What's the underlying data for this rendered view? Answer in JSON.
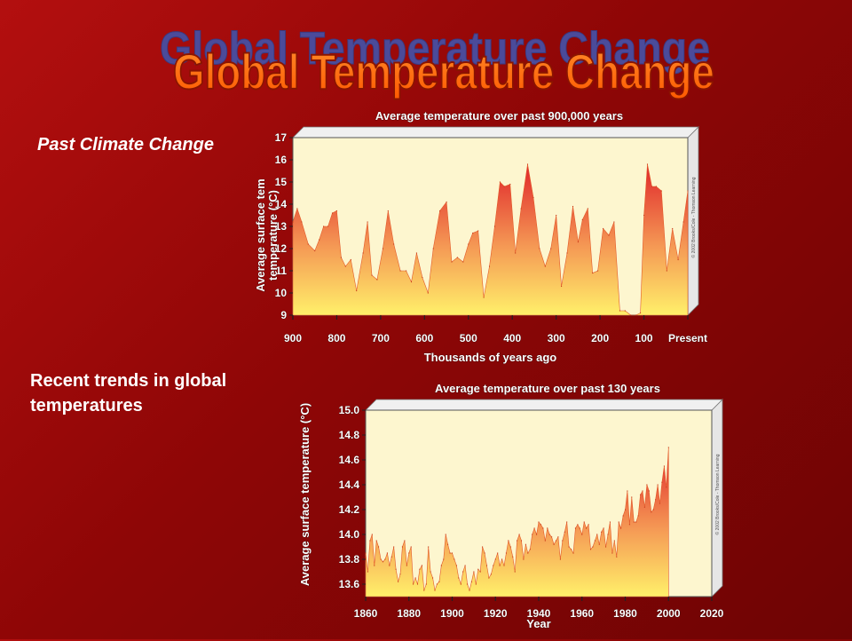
{
  "slide": {
    "title": "Global Temperature Change",
    "label_past": "Past Climate Change",
    "label_recent": "Recent trends in global temperatures"
  },
  "colors": {
    "background": "#8e0606",
    "title_fill": "#ff6a10",
    "title_shadow": "#4b4b9a",
    "plot_bg": "#fdf6cf",
    "area_top": "#e0262b",
    "area_bottom": "#fff06a"
  },
  "chart_data": [
    {
      "type": "area",
      "title": "Average temperature over past 900,000 years",
      "xlabel": "Thousands of years ago",
      "ylabel": "Average surface temperature (°C)",
      "ylabel_lines": [
        "Average surface tem",
        "temperature (°C)"
      ],
      "x_ticks": [
        "900",
        "800",
        "700",
        "600",
        "500",
        "400",
        "300",
        "200",
        "100",
        "Present"
      ],
      "y_ticks": [
        9,
        10,
        11,
        12,
        13,
        14,
        15,
        16,
        17
      ],
      "ylim": [
        9,
        17
      ],
      "xlim": [
        900,
        0
      ],
      "credit": "© 2002 Brooks/Cole - Thomson Learning",
      "x": [
        900,
        890,
        880,
        865,
        850,
        840,
        830,
        820,
        810,
        800,
        790,
        780,
        768,
        755,
        740,
        730,
        720,
        708,
        695,
        683,
        670,
        655,
        642,
        630,
        618,
        605,
        592,
        580,
        565,
        550,
        538,
        525,
        512,
        500,
        490,
        478,
        465,
        452,
        440,
        428,
        418,
        405,
        393,
        380,
        365,
        352,
        338,
        325,
        312,
        300,
        288,
        275,
        262,
        250,
        240,
        228,
        217,
        205,
        193,
        180,
        168,
        155,
        143,
        130,
        118,
        108,
        100,
        92,
        82,
        72,
        60,
        48,
        35,
        22,
        10,
        0
      ],
      "values": [
        13.2,
        13.8,
        13.2,
        12.2,
        11.9,
        12.4,
        13.0,
        13.0,
        13.6,
        13.7,
        11.6,
        11.2,
        11.5,
        10.1,
        11.8,
        13.2,
        10.8,
        10.6,
        12.0,
        13.7,
        12.2,
        11.0,
        11.0,
        10.5,
        11.8,
        10.7,
        10.0,
        12.0,
        13.7,
        14.1,
        11.4,
        11.6,
        11.4,
        12.2,
        12.7,
        12.8,
        9.8,
        11.2,
        13.0,
        15.0,
        14.8,
        14.9,
        11.8,
        13.8,
        15.8,
        14.3,
        12.0,
        11.2,
        12.0,
        13.5,
        10.3,
        11.8,
        13.9,
        12.3,
        13.3,
        13.8,
        10.9,
        11.0,
        12.9,
        12.6,
        13.2,
        9.2,
        9.2,
        9.0,
        9.0,
        9.1,
        13.5,
        15.8,
        14.8,
        14.8,
        14.6,
        11.0,
        12.9,
        11.5,
        13.2,
        14.6
      ]
    },
    {
      "type": "area",
      "title": "Average temperature over past 130 years",
      "xlabel": "Year",
      "ylabel": "Average surface temperature (°C)",
      "x_ticks": [
        "1860",
        "1880",
        "1900",
        "1920",
        "1940",
        "1960",
        "1980",
        "2000",
        "2020"
      ],
      "y_ticks": [
        "13.6",
        "13.8",
        "14.0",
        "14.2",
        "14.4",
        "14.6",
        "14.8",
        "15.0"
      ],
      "ylim": [
        13.5,
        15.0
      ],
      "xlim": [
        1860,
        2020
      ],
      "credit": "© 2002 Brooks/Cole - Thomson Learning",
      "x": [
        1860,
        1861,
        1862,
        1863,
        1864,
        1865,
        1866,
        1867,
        1868,
        1869,
        1870,
        1871,
        1872,
        1873,
        1874,
        1875,
        1876,
        1877,
        1878,
        1879,
        1880,
        1881,
        1882,
        1883,
        1884,
        1885,
        1886,
        1887,
        1888,
        1889,
        1890,
        1891,
        1892,
        1893,
        1894,
        1895,
        1896,
        1897,
        1898,
        1899,
        1900,
        1901,
        1902,
        1903,
        1904,
        1905,
        1906,
        1907,
        1908,
        1909,
        1910,
        1911,
        1912,
        1913,
        1914,
        1915,
        1916,
        1917,
        1918,
        1919,
        1920,
        1921,
        1922,
        1923,
        1924,
        1925,
        1926,
        1927,
        1928,
        1929,
        1930,
        1931,
        1932,
        1933,
        1934,
        1935,
        1936,
        1937,
        1938,
        1939,
        1940,
        1941,
        1942,
        1943,
        1944,
        1945,
        1946,
        1947,
        1948,
        1949,
        1950,
        1951,
        1952,
        1953,
        1954,
        1955,
        1956,
        1957,
        1958,
        1959,
        1960,
        1961,
        1962,
        1963,
        1964,
        1965,
        1966,
        1967,
        1968,
        1969,
        1970,
        1971,
        1972,
        1973,
        1974,
        1975,
        1976,
        1977,
        1978,
        1979,
        1980,
        1981,
        1982,
        1983,
        1984,
        1985,
        1986,
        1987,
        1988,
        1989,
        1990,
        1991,
        1992,
        1993,
        1994,
        1995,
        1996,
        1997,
        1998,
        1999,
        2000
      ],
      "values": [
        13.85,
        13.7,
        13.95,
        14.0,
        13.75,
        13.95,
        13.9,
        13.8,
        13.78,
        13.8,
        13.85,
        13.75,
        13.82,
        13.9,
        13.72,
        13.62,
        13.68,
        13.9,
        13.95,
        13.75,
        13.85,
        13.9,
        13.6,
        13.65,
        13.6,
        13.72,
        13.75,
        13.55,
        13.6,
        13.9,
        13.7,
        13.65,
        13.55,
        13.6,
        13.62,
        13.75,
        13.8,
        14.0,
        13.92,
        13.85,
        13.85,
        13.8,
        13.75,
        13.65,
        13.6,
        13.7,
        13.75,
        13.6,
        13.55,
        13.62,
        13.7,
        13.6,
        13.72,
        13.7,
        13.9,
        13.85,
        13.75,
        13.65,
        13.68,
        13.75,
        13.8,
        13.85,
        13.75,
        13.8,
        13.75,
        13.85,
        13.95,
        13.9,
        13.82,
        13.7,
        13.95,
        14.0,
        13.95,
        13.8,
        13.92,
        13.85,
        13.88,
        14.0,
        14.05,
        14.0,
        14.1,
        14.08,
        14.05,
        13.95,
        14.05,
        14.0,
        13.98,
        13.92,
        13.95,
        13.98,
        13.8,
        13.95,
        14.02,
        14.1,
        13.9,
        13.88,
        13.85,
        14.05,
        14.08,
        14.05,
        14.0,
        14.1,
        14.05,
        14.08,
        13.88,
        13.9,
        13.95,
        14.0,
        13.92,
        14.02,
        14.05,
        13.9,
        14.0,
        14.1,
        13.85,
        13.95,
        13.82,
        14.1,
        14.05,
        14.15,
        14.2,
        14.35,
        14.08,
        14.3,
        14.1,
        14.1,
        14.15,
        14.32,
        14.35,
        14.22,
        14.4,
        14.35,
        14.18,
        14.2,
        14.28,
        14.4,
        14.25,
        14.42,
        14.55,
        14.38,
        14.7
      ]
    }
  ]
}
